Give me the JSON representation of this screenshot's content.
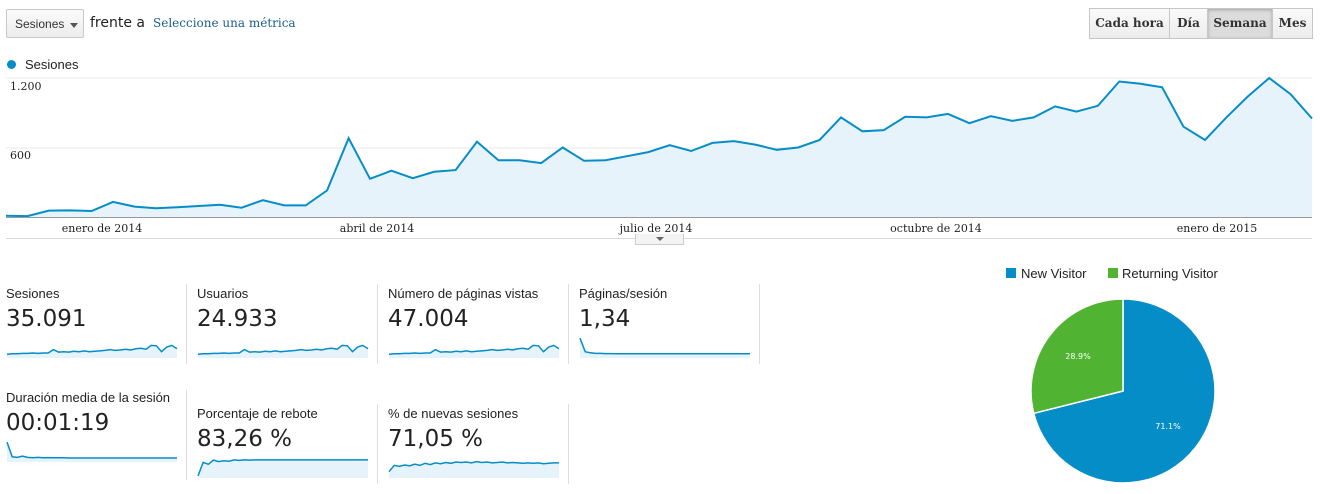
{
  "toolbar": {
    "metric_select": "Sesiones",
    "versus": "frente a",
    "pick_metric": "Seleccione una métrica",
    "granularity": [
      "Cada hora",
      "Día",
      "Semana",
      "Mes"
    ],
    "active_granularity": "Semana"
  },
  "chart_data": [
    {
      "type": "area",
      "legend": "Sesiones",
      "y_ticks": [
        "1.200",
        "600"
      ],
      "ylim": [
        0,
        1200
      ],
      "x_labels": [
        "enero de 2014",
        "abril de 2014",
        "julio de 2014",
        "octubre de 2014",
        "enero de 2015"
      ],
      "series": [
        {
          "name": "Sesiones",
          "color": "#058dc7",
          "values": [
            10,
            8,
            55,
            57,
            52,
            130,
            90,
            75,
            85,
            95,
            105,
            80,
            145,
            100,
            100,
            230,
            680,
            330,
            400,
            335,
            390,
            405,
            650,
            490,
            490,
            465,
            600,
            485,
            490,
            525,
            560,
            620,
            570,
            640,
            655,
            625,
            580,
            600,
            665,
            860,
            740,
            750,
            865,
            860,
            890,
            810,
            870,
            830,
            860,
            955,
            910,
            960,
            1170,
            1150,
            1120,
            780,
            665,
            860,
            1040,
            1200,
            1060,
            850
          ]
        }
      ]
    },
    {
      "type": "pie",
      "legend": [
        "New Visitor",
        "Returning Visitor"
      ],
      "values": [
        71.1,
        28.9
      ],
      "labels": [
        "71.1%",
        "28.9%"
      ],
      "colors": [
        "#058dc7",
        "#50b432"
      ]
    }
  ],
  "scorecards": [
    {
      "title": "Sesiones",
      "value": "35.091",
      "spark": [
        18,
        20,
        20,
        22,
        22,
        24,
        22,
        24,
        24,
        40,
        28,
        30,
        28,
        32,
        30,
        34,
        30,
        32,
        34,
        36,
        40,
        36,
        38,
        42,
        38,
        44,
        46,
        42,
        60,
        58,
        30,
        52,
        60,
        44
      ]
    },
    {
      "title": "Usuarios",
      "value": "24.933",
      "spark": [
        18,
        20,
        20,
        22,
        22,
        24,
        22,
        24,
        24,
        40,
        28,
        30,
        28,
        32,
        30,
        34,
        30,
        32,
        34,
        36,
        40,
        36,
        38,
        42,
        38,
        44,
        46,
        42,
        60,
        58,
        30,
        52,
        60,
        44
      ]
    },
    {
      "title": "Número de páginas vistas",
      "value": "47.004",
      "spark": [
        18,
        20,
        20,
        22,
        22,
        24,
        22,
        24,
        24,
        40,
        28,
        30,
        28,
        32,
        30,
        34,
        30,
        32,
        34,
        36,
        40,
        36,
        38,
        42,
        38,
        44,
        46,
        42,
        60,
        58,
        30,
        52,
        60,
        44
      ]
    },
    {
      "title": "Páginas/sesión",
      "value": "1,34",
      "spark": [
        95,
        30,
        25,
        22,
        22,
        21,
        21,
        20,
        20,
        20,
        20,
        20,
        20,
        20,
        20,
        20,
        20,
        20,
        20,
        20,
        20,
        20,
        20,
        20,
        20,
        20,
        20,
        20,
        20,
        20,
        20,
        20,
        20,
        20
      ]
    },
    {
      "title": "Duración media de la sesión",
      "value": "00:01:19",
      "spark": [
        95,
        25,
        22,
        28,
        22,
        20,
        22,
        20,
        21,
        20,
        20,
        20,
        19,
        19,
        19,
        19,
        19,
        19,
        19,
        19,
        19,
        19,
        19,
        19,
        19,
        19,
        19,
        19,
        19,
        19,
        19,
        19,
        19,
        19
      ]
    },
    {
      "title": "Porcentaje de rebote",
      "value": "83,26 %",
      "spark": [
        10,
        75,
        65,
        85,
        78,
        82,
        80,
        86,
        84,
        86,
        85,
        86,
        86,
        86,
        86,
        86,
        86,
        86,
        86,
        86,
        86,
        86,
        86,
        86,
        86,
        86,
        86,
        86,
        86,
        86,
        86,
        86,
        86,
        86
      ]
    },
    {
      "title": "% de nuevas sesiones",
      "value": "71,05 %",
      "spark": [
        30,
        60,
        55,
        62,
        58,
        66,
        60,
        70,
        64,
        72,
        68,
        74,
        70,
        76,
        74,
        76,
        72,
        78,
        74,
        76,
        72,
        74,
        76,
        72,
        74,
        72,
        70,
        72,
        70,
        72,
        68,
        70,
        72,
        72
      ]
    }
  ]
}
